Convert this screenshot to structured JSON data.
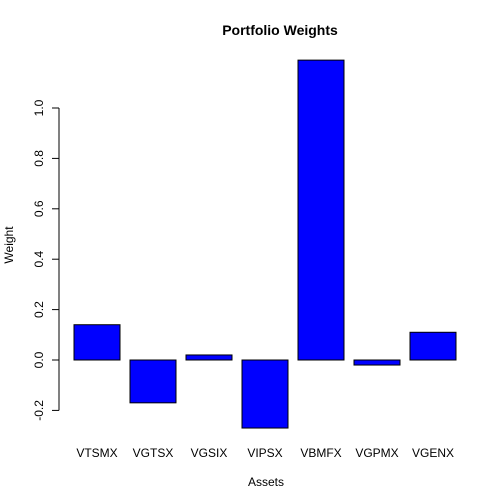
{
  "chart_data": {
    "type": "bar",
    "title": "Portfolio Weights",
    "xlabel": "Assets",
    "ylabel": "Weight",
    "categories": [
      "VTSMX",
      "VGTSX",
      "VGSIX",
      "VIPSX",
      "VBMFX",
      "VGPMX",
      "VGENX"
    ],
    "values": [
      0.14,
      -0.17,
      0.02,
      -0.27,
      1.19,
      -0.02,
      0.11
    ],
    "yticks": [
      -0.2,
      0.0,
      0.2,
      0.4,
      0.6,
      0.8,
      1.0
    ],
    "ytick_labels": [
      "-0.2",
      "0.0",
      "0.2",
      "0.4",
      "0.6",
      "0.8",
      "1.0"
    ],
    "ylim": [
      -0.27,
      1.19
    ],
    "bar_color": "#0000ff",
    "grid": false,
    "legend": "none"
  }
}
